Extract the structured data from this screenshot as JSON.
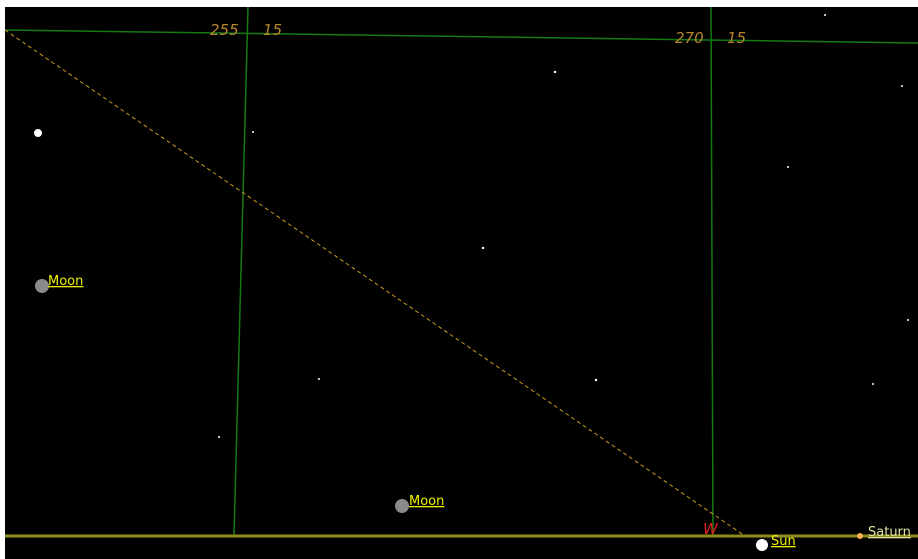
{
  "grid_labels": [
    {
      "ra": "255",
      "dec": "15"
    },
    {
      "ra": "270",
      "dec": "15"
    }
  ],
  "objects": [
    {
      "label": "Moon"
    },
    {
      "label": "Moon"
    },
    {
      "label": "Sun"
    },
    {
      "label": "Saturn"
    }
  ],
  "horizon": {
    "direction": "W"
  }
}
